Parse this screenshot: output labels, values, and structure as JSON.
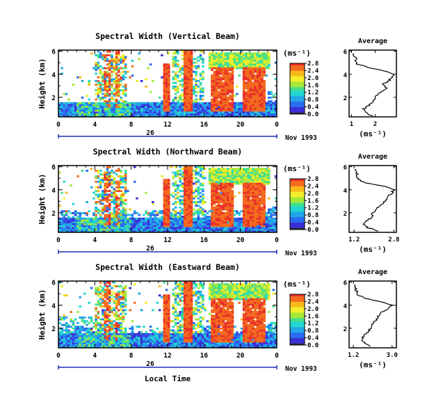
{
  "figure": {
    "date_label": "Nov 1993",
    "xlabel": "Local Time",
    "day_label": "26",
    "avg_title": "Average",
    "avg_xlabel": "(ms⁻¹)",
    "cbar_unit": "(ms⁻¹)",
    "ylabel": "Height (km)"
  },
  "colorscale": [
    "#2b2b2b",
    "#3b2fd6",
    "#2a6cf0",
    "#23a6e8",
    "#23d6d0",
    "#45e08a",
    "#a6e83a",
    "#f2ee2a",
    "#f7b91a",
    "#f36b1f",
    "#e8302a"
  ],
  "chart_data": [
    {
      "type": "heatmap",
      "title": "Spectral Width (Vertical Beam)",
      "xlabel": "Local Time",
      "ylabel": "Height (km)",
      "xticks": [
        "0",
        "4",
        "8",
        "12",
        "16",
        "20",
        "0"
      ],
      "xlim": [
        0,
        24
      ],
      "yticks": [
        "2",
        "4",
        "6"
      ],
      "ylim": [
        0.3,
        6.1
      ],
      "colorbar_ticks": [
        "0.0",
        "0.4",
        "0.8",
        "1.2",
        "1.6",
        "2.0",
        "2.4",
        "2.8"
      ],
      "colorbar_range": [
        0,
        2.8
      ],
      "avg_profile": {
        "xticks": [
          "1",
          "2"
        ],
        "xlim": [
          0.9,
          2.9
        ],
        "height": [
          0.4,
          0.7,
          1.0,
          1.3,
          1.6,
          1.9,
          2.2,
          2.5,
          2.8,
          3.1,
          3.4,
          3.7,
          4.0,
          4.3,
          4.6,
          4.9,
          5.2,
          5.5,
          5.8
        ],
        "width": [
          1.85,
          1.6,
          1.5,
          1.75,
          1.9,
          2.0,
          2.05,
          2.3,
          2.5,
          2.3,
          2.55,
          2.7,
          2.8,
          2.35,
          1.7,
          1.25,
          1.2,
          1.15,
          1.1
        ]
      }
    },
    {
      "type": "heatmap",
      "title": "Spectral Width (Northward Beam)",
      "xlabel": "Local Time",
      "ylabel": "Height (km)",
      "xticks": [
        "0",
        "4",
        "8",
        "12",
        "16",
        "20",
        "0"
      ],
      "xlim": [
        0,
        24
      ],
      "yticks": [
        "2",
        "4",
        "6"
      ],
      "ylim": [
        0.3,
        6.1
      ],
      "colorbar_ticks": [
        "0.0",
        "0.4",
        "0.8",
        "1.2",
        "1.6",
        "2.0",
        "2.4",
        "2.8"
      ],
      "colorbar_range": [
        0,
        2.8
      ],
      "avg_profile": {
        "xticks": [
          "1.2",
          "2.8"
        ],
        "xlim": [
          1.0,
          2.9
        ],
        "height": [
          0.4,
          0.7,
          1.0,
          1.3,
          1.6,
          1.9,
          2.2,
          2.5,
          2.8,
          3.1,
          3.4,
          3.7,
          4.0,
          4.3,
          4.6,
          4.9,
          5.2,
          5.5,
          5.8
        ],
        "width": [
          2.2,
          1.75,
          1.55,
          1.7,
          1.9,
          1.95,
          2.05,
          2.2,
          2.4,
          2.45,
          2.55,
          2.7,
          2.8,
          2.4,
          1.7,
          1.35,
          1.3,
          1.3,
          1.25
        ]
      }
    },
    {
      "type": "heatmap",
      "title": "Spectral Width (Eastward Beam)",
      "xlabel": "Local Time",
      "ylabel": "Height (km)",
      "xticks": [
        "0",
        "4",
        "8",
        "12",
        "16",
        "20",
        "0"
      ],
      "xlim": [
        0,
        24
      ],
      "yticks": [
        "2",
        "4",
        "6"
      ],
      "ylim": [
        0.3,
        6.1
      ],
      "colorbar_ticks": [
        "0.0",
        "0.4",
        "0.8",
        "1.2",
        "1.6",
        "2.0",
        "2.4",
        "2.8"
      ],
      "colorbar_range": [
        0,
        2.8
      ],
      "avg_profile": {
        "xticks": [
          "1.2",
          "3.0"
        ],
        "xlim": [
          1.0,
          3.2
        ],
        "height": [
          0.4,
          0.7,
          1.0,
          1.3,
          1.6,
          1.9,
          2.2,
          2.5,
          2.8,
          3.1,
          3.4,
          3.7,
          4.0,
          4.3,
          4.6,
          4.9,
          5.2,
          5.5,
          5.8
        ],
        "width": [
          2.0,
          1.7,
          1.6,
          1.65,
          1.85,
          1.95,
          2.05,
          2.1,
          2.3,
          2.35,
          2.5,
          2.8,
          3.0,
          2.5,
          1.75,
          1.4,
          1.35,
          1.3,
          1.3
        ]
      }
    }
  ]
}
